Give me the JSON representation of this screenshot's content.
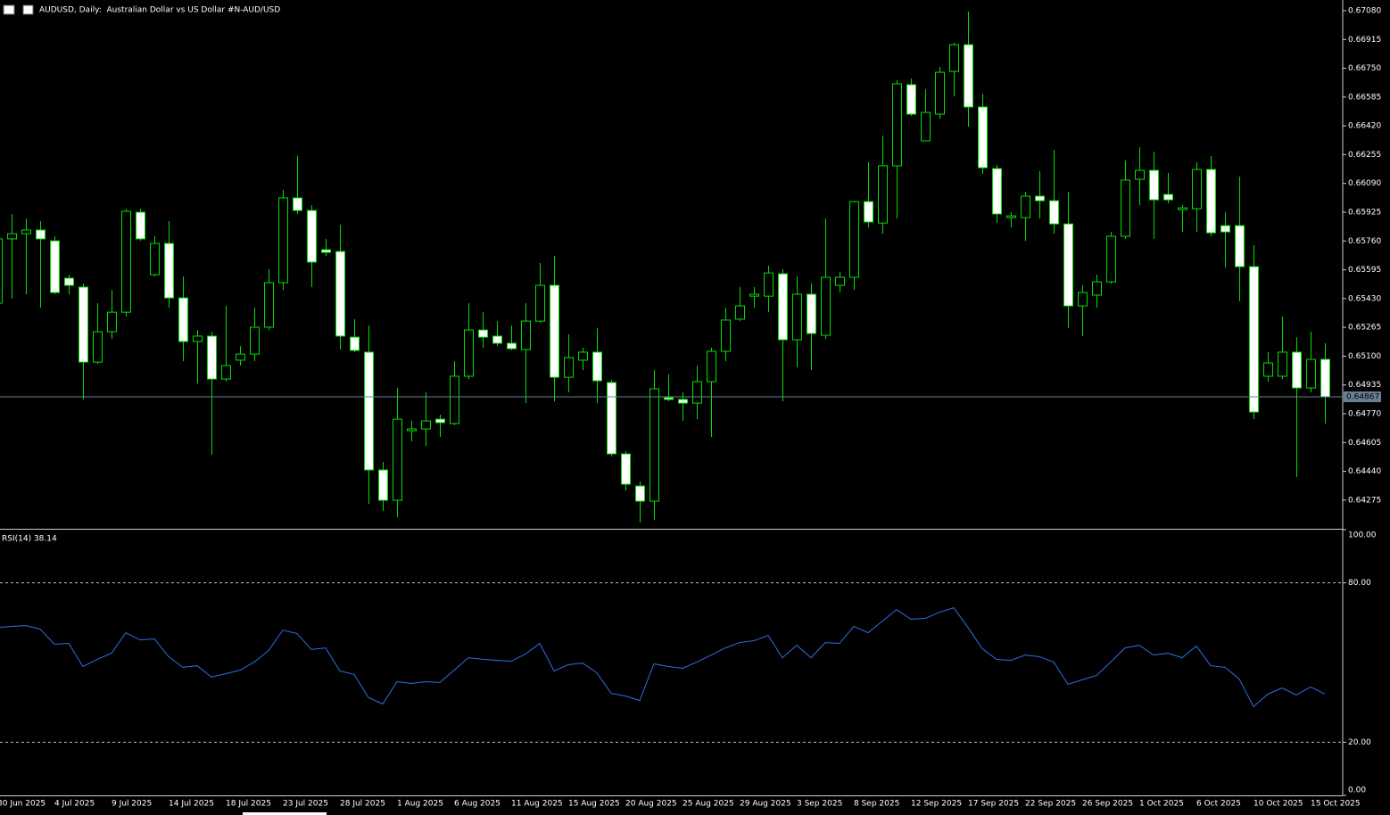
{
  "chart_data": [
    {
      "type": "candlestick",
      "title": "AUDUSD, Daily:  Australian Dollar vs US Dollar #N-AUD/USD",
      "categories": [
        "30 Jun 2025",
        null,
        null,
        null,
        "4 Jul 2025",
        null,
        null,
        null,
        "9 Jul 2025",
        null,
        null,
        null,
        "14 Jul 2025",
        null,
        null,
        null,
        "18 Jul 2025",
        null,
        null,
        null,
        "23 Jul 2025",
        null,
        null,
        null,
        "28 Jul 2025",
        null,
        null,
        null,
        "1 Aug 2025",
        null,
        null,
        null,
        "6 Aug 2025",
        null,
        null,
        null,
        "11 Aug 2025",
        null,
        null,
        null,
        "15 Aug 2025",
        null,
        null,
        null,
        "20 Aug 2025",
        null,
        null,
        null,
        "25 Aug 2025",
        null,
        null,
        null,
        "29 Aug 2025",
        null,
        null,
        null,
        "3 Sep 2025",
        null,
        null,
        null,
        "8 Sep 2025",
        null,
        null,
        null,
        "12 Sep 2025",
        null,
        null,
        null,
        "17 Sep 2025",
        null,
        null,
        null,
        "22 Sep 2025",
        null,
        null,
        null,
        "26 Sep 2025",
        null,
        null,
        null,
        "1 Oct 2025",
        null,
        null,
        null,
        "6 Oct 2025",
        null,
        null,
        null,
        "10 Oct 2025",
        null,
        null,
        null,
        "15 Oct 2025",
        null
      ],
      "open": [
        0.65404,
        0.65772,
        0.65802,
        0.65823,
        0.65761,
        0.65547,
        0.65496,
        0.65066,
        0.6524,
        0.65352,
        0.65925,
        0.65567,
        0.65746,
        0.65434,
        0.65184,
        0.65215,
        0.64969,
        0.65077,
        0.65112,
        0.65266,
        0.65521,
        0.66007,
        0.65935,
        0.6571,
        0.657,
        0.65209,
        0.65123,
        0.64448,
        0.64274,
        0.64673,
        0.64683,
        0.64739,
        0.64714,
        0.64985,
        0.6525,
        0.65215,
        0.65174,
        0.65138,
        0.65301,
        0.65506,
        0.64979,
        0.65077,
        0.65123,
        0.64949,
        0.6454,
        0.64356,
        0.64269,
        0.64862,
        0.64852,
        0.64831,
        0.64954,
        0.65128,
        0.65312,
        0.65444,
        0.65444,
        0.65572,
        0.65194,
        0.65455,
        0.6522,
        0.65506,
        0.65552,
        0.65986,
        0.65863,
        0.66191,
        0.66656,
        0.66334,
        0.66487,
        0.66732,
        0.66885,
        0.66528,
        0.66175,
        0.65894,
        0.65894,
        0.66017,
        0.65991,
        0.65858,
        0.65388,
        0.6545,
        0.65526,
        0.65787,
        0.66114,
        0.66165,
        0.66027,
        0.6594,
        0.65945,
        0.6617,
        0.65848,
        0.65848,
        0.65613,
        0.64985,
        0.64985,
        0.65123,
        0.64918,
        0.65082
      ],
      "high": [
        0.65812,
        0.65915,
        0.65889,
        0.65874,
        0.65787,
        0.65567,
        0.65516,
        0.65404,
        0.6548,
        0.65945,
        0.65945,
        0.65787,
        0.65874,
        0.65557,
        0.6525,
        0.6524,
        0.65388,
        0.65158,
        0.65378,
        0.65598,
        0.66053,
        0.66247,
        0.65966,
        0.65772,
        0.65853,
        0.65312,
        0.65276,
        0.64494,
        0.64918,
        0.64729,
        0.64893,
        0.64765,
        0.65071,
        0.65404,
        0.65352,
        0.65301,
        0.65276,
        0.65404,
        0.65634,
        0.65674,
        0.65225,
        0.65148,
        0.65261,
        0.64964,
        0.64555,
        0.64382,
        0.6502,
        0.64995,
        0.64893,
        0.65046,
        0.65148,
        0.65378,
        0.65496,
        0.65496,
        0.65618,
        0.65598,
        0.65557,
        0.65516,
        0.65889,
        0.65582,
        0.65991,
        0.66211,
        0.66364,
        0.66681,
        0.66691,
        0.6663,
        0.66758,
        0.66896,
        0.67075,
        0.66604,
        0.66196,
        0.65925,
        0.66042,
        0.6616,
        0.66283,
        0.66042,
        0.65506,
        0.65567,
        0.65812,
        0.66221,
        0.66298,
        0.66272,
        0.6615,
        0.65966,
        0.66211,
        0.66247,
        0.65925,
        0.66129,
        0.65736,
        0.65123,
        0.65327,
        0.65209,
        0.6524,
        0.65174
      ],
      "low": [
        0.65327,
        0.65429,
        0.65455,
        0.65378,
        0.65455,
        0.65455,
        0.64852,
        0.65056,
        0.65199,
        0.65327,
        0.65761,
        0.65557,
        0.65378,
        0.65071,
        0.64944,
        0.64535,
        0.64954,
        0.65046,
        0.65071,
        0.6525,
        0.6548,
        0.65915,
        0.65496,
        0.65674,
        0.65138,
        0.65123,
        0.64254,
        0.64213,
        0.64177,
        0.64612,
        0.64586,
        0.64637,
        0.64704,
        0.64969,
        0.65148,
        0.65158,
        0.65133,
        0.64831,
        0.65291,
        0.64841,
        0.64893,
        0.6502,
        0.64831,
        0.64525,
        0.6433,
        0.64147,
        0.64162,
        0.64841,
        0.64729,
        0.64739,
        0.64637,
        0.65071,
        0.65301,
        0.65378,
        0.65352,
        0.64841,
        0.65036,
        0.6502,
        0.65199,
        0.65465,
        0.6548,
        0.65838,
        0.65802,
        0.65889,
        0.66477,
        0.66334,
        0.66461,
        0.66589,
        0.66415,
        0.66145,
        0.65863,
        0.65838,
        0.65761,
        0.65889,
        0.65802,
        0.65261,
        0.65215,
        0.65378,
        0.65516,
        0.65772,
        0.65966,
        0.65772,
        0.65976,
        0.65812,
        0.65812,
        0.65787,
        0.65608,
        0.65414,
        0.64739,
        0.64954,
        0.64969,
        0.64407,
        0.64893,
        0.64714
      ],
      "close": [
        0.65772,
        0.65802,
        0.65823,
        0.65772,
        0.65465,
        0.65506,
        0.65066,
        0.6524,
        0.65352,
        0.6593,
        0.65772,
        0.65746,
        0.65434,
        0.65184,
        0.65215,
        0.64969,
        0.65046,
        0.65112,
        0.65266,
        0.65521,
        0.66007,
        0.65935,
        0.65639,
        0.65695,
        0.65215,
        0.65133,
        0.64448,
        0.64274,
        0.64739,
        0.64683,
        0.64729,
        0.64719,
        0.64985,
        0.6525,
        0.65209,
        0.65174,
        0.65143,
        0.65301,
        0.65506,
        0.64979,
        0.65092,
        0.65123,
        0.64959,
        0.6454,
        0.64366,
        0.64269,
        0.64913,
        0.64852,
        0.64831,
        0.64954,
        0.65128,
        0.65307,
        0.65388,
        0.65455,
        0.65577,
        0.65194,
        0.65455,
        0.6523,
        0.65552,
        0.65552,
        0.65986,
        0.65869,
        0.66191,
        0.66661,
        0.66487,
        0.66497,
        0.66727,
        0.66885,
        0.66528,
        0.6618,
        0.65915,
        0.65904,
        0.66017,
        0.65991,
        0.65858,
        0.65388,
        0.65465,
        0.65526,
        0.65787,
        0.66109,
        0.66165,
        0.65996,
        0.65996,
        0.6595,
        0.6617,
        0.65807,
        0.65812,
        0.65613,
        0.6478,
        0.65061,
        0.65123,
        0.64918,
        0.65082,
        0.64867
      ],
      "last_price": 0.64867,
      "ylim": [
        0.64116,
        0.67131
      ],
      "yticks": [
        {
          "value": 0.6708,
          "label": "0.67080"
        },
        0.66915,
        {
          "value": 0.6675,
          "label": "0.66750"
        },
        0.66585,
        {
          "value": 0.6642,
          "label": "0.66420"
        },
        0.66255,
        {
          "value": 0.6609,
          "label": "0.66090"
        },
        0.65925,
        {
          "value": 0.6576,
          "label": "0.65760"
        },
        0.65595,
        {
          "value": 0.6543,
          "label": "0.65430"
        },
        0.65265,
        {
          "value": 0.651,
          "label": "0.65100"
        },
        0.64935,
        {
          "value": 0.6477,
          "label": "0.64770"
        },
        0.64605,
        {
          "value": 0.6444,
          "label": "0.64440"
        },
        0.64275
      ],
      "up_color": "#000000",
      "down_color": "#ffffff",
      "wick_color": "#00e000",
      "price_line_color": "#6a7f96"
    },
    {
      "type": "line",
      "title": "RSI(14) 38.14",
      "values": [
        63.2,
        63.6,
        63.9,
        62.6,
        56.9,
        57.2,
        48.5,
        51.2,
        53.5,
        61.2,
        58.5,
        58.9,
        52.2,
        48.2,
        48.8,
        44.5,
        45.8,
        47.1,
        50.2,
        54.5,
        62.2,
        60.9,
        54.9,
        55.5,
        46.8,
        45.5,
        36.8,
        34.4,
        42.8,
        42.1,
        42.8,
        42.5,
        47.1,
        51.8,
        51.2,
        50.8,
        50.5,
        53.2,
        57.2,
        46.8,
        49.2,
        49.8,
        46.1,
        38.4,
        37.4,
        35.7,
        49.5,
        48.5,
        47.8,
        50.2,
        52.8,
        55.5,
        57.5,
        58.2,
        60.2,
        51.8,
        56.5,
        51.8,
        57.5,
        57.2,
        63.6,
        61.2,
        65.6,
        69.9,
        66.3,
        66.6,
        68.9,
        70.6,
        63.2,
        55.2,
        51.2,
        50.8,
        52.8,
        52.2,
        50.2,
        41.8,
        43.5,
        45.1,
        50.2,
        55.5,
        56.5,
        52.8,
        53.5,
        51.8,
        56.2,
        48.8,
        48.2,
        43.8,
        33.4,
        38.1,
        40.4,
        37.8,
        40.8,
        38.14
      ],
      "color": "#2f6fe6",
      "ylim": [
        0,
        100
      ],
      "yticks": [
        {
          "value": 100,
          "label": "100.00"
        },
        {
          "value": 80,
          "label": "80.00"
        },
        {
          "value": 20,
          "label": "20.00"
        },
        {
          "value": 0,
          "label": "0.00"
        }
      ],
      "level_lines": true
    }
  ]
}
